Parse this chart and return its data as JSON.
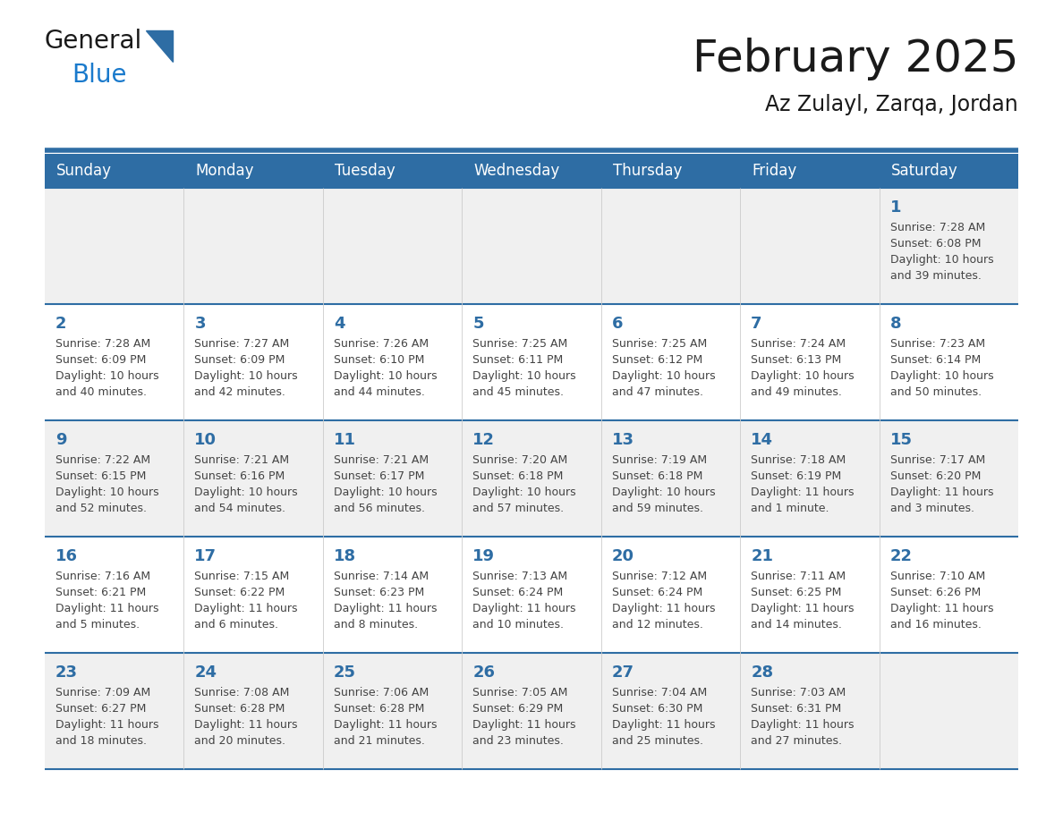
{
  "title": "February 2025",
  "subtitle": "Az Zulayl, Zarqa, Jordan",
  "header_bg_color": "#2E6DA4",
  "header_text_color": "#FFFFFF",
  "row_colors": [
    "#F0F0F0",
    "#FFFFFF",
    "#F0F0F0",
    "#FFFFFF",
    "#F0F0F0"
  ],
  "day_number_color": "#2E6DA4",
  "text_color": "#444444",
  "line_color": "#2E6DA4",
  "days_of_week": [
    "Sunday",
    "Monday",
    "Tuesday",
    "Wednesday",
    "Thursday",
    "Friday",
    "Saturday"
  ],
  "weeks": [
    [
      {
        "day": null,
        "info": null
      },
      {
        "day": null,
        "info": null
      },
      {
        "day": null,
        "info": null
      },
      {
        "day": null,
        "info": null
      },
      {
        "day": null,
        "info": null
      },
      {
        "day": null,
        "info": null
      },
      {
        "day": 1,
        "info": "Sunrise: 7:28 AM\nSunset: 6:08 PM\nDaylight: 10 hours\nand 39 minutes."
      }
    ],
    [
      {
        "day": 2,
        "info": "Sunrise: 7:28 AM\nSunset: 6:09 PM\nDaylight: 10 hours\nand 40 minutes."
      },
      {
        "day": 3,
        "info": "Sunrise: 7:27 AM\nSunset: 6:09 PM\nDaylight: 10 hours\nand 42 minutes."
      },
      {
        "day": 4,
        "info": "Sunrise: 7:26 AM\nSunset: 6:10 PM\nDaylight: 10 hours\nand 44 minutes."
      },
      {
        "day": 5,
        "info": "Sunrise: 7:25 AM\nSunset: 6:11 PM\nDaylight: 10 hours\nand 45 minutes."
      },
      {
        "day": 6,
        "info": "Sunrise: 7:25 AM\nSunset: 6:12 PM\nDaylight: 10 hours\nand 47 minutes."
      },
      {
        "day": 7,
        "info": "Sunrise: 7:24 AM\nSunset: 6:13 PM\nDaylight: 10 hours\nand 49 minutes."
      },
      {
        "day": 8,
        "info": "Sunrise: 7:23 AM\nSunset: 6:14 PM\nDaylight: 10 hours\nand 50 minutes."
      }
    ],
    [
      {
        "day": 9,
        "info": "Sunrise: 7:22 AM\nSunset: 6:15 PM\nDaylight: 10 hours\nand 52 minutes."
      },
      {
        "day": 10,
        "info": "Sunrise: 7:21 AM\nSunset: 6:16 PM\nDaylight: 10 hours\nand 54 minutes."
      },
      {
        "day": 11,
        "info": "Sunrise: 7:21 AM\nSunset: 6:17 PM\nDaylight: 10 hours\nand 56 minutes."
      },
      {
        "day": 12,
        "info": "Sunrise: 7:20 AM\nSunset: 6:18 PM\nDaylight: 10 hours\nand 57 minutes."
      },
      {
        "day": 13,
        "info": "Sunrise: 7:19 AM\nSunset: 6:18 PM\nDaylight: 10 hours\nand 59 minutes."
      },
      {
        "day": 14,
        "info": "Sunrise: 7:18 AM\nSunset: 6:19 PM\nDaylight: 11 hours\nand 1 minute."
      },
      {
        "day": 15,
        "info": "Sunrise: 7:17 AM\nSunset: 6:20 PM\nDaylight: 11 hours\nand 3 minutes."
      }
    ],
    [
      {
        "day": 16,
        "info": "Sunrise: 7:16 AM\nSunset: 6:21 PM\nDaylight: 11 hours\nand 5 minutes."
      },
      {
        "day": 17,
        "info": "Sunrise: 7:15 AM\nSunset: 6:22 PM\nDaylight: 11 hours\nand 6 minutes."
      },
      {
        "day": 18,
        "info": "Sunrise: 7:14 AM\nSunset: 6:23 PM\nDaylight: 11 hours\nand 8 minutes."
      },
      {
        "day": 19,
        "info": "Sunrise: 7:13 AM\nSunset: 6:24 PM\nDaylight: 11 hours\nand 10 minutes."
      },
      {
        "day": 20,
        "info": "Sunrise: 7:12 AM\nSunset: 6:24 PM\nDaylight: 11 hours\nand 12 minutes."
      },
      {
        "day": 21,
        "info": "Sunrise: 7:11 AM\nSunset: 6:25 PM\nDaylight: 11 hours\nand 14 minutes."
      },
      {
        "day": 22,
        "info": "Sunrise: 7:10 AM\nSunset: 6:26 PM\nDaylight: 11 hours\nand 16 minutes."
      }
    ],
    [
      {
        "day": 23,
        "info": "Sunrise: 7:09 AM\nSunset: 6:27 PM\nDaylight: 11 hours\nand 18 minutes."
      },
      {
        "day": 24,
        "info": "Sunrise: 7:08 AM\nSunset: 6:28 PM\nDaylight: 11 hours\nand 20 minutes."
      },
      {
        "day": 25,
        "info": "Sunrise: 7:06 AM\nSunset: 6:28 PM\nDaylight: 11 hours\nand 21 minutes."
      },
      {
        "day": 26,
        "info": "Sunrise: 7:05 AM\nSunset: 6:29 PM\nDaylight: 11 hours\nand 23 minutes."
      },
      {
        "day": 27,
        "info": "Sunrise: 7:04 AM\nSunset: 6:30 PM\nDaylight: 11 hours\nand 25 minutes."
      },
      {
        "day": 28,
        "info": "Sunrise: 7:03 AM\nSunset: 6:31 PM\nDaylight: 11 hours\nand 27 minutes."
      },
      {
        "day": null,
        "info": null
      }
    ]
  ],
  "logo_text_general": "General",
  "logo_text_blue": "Blue",
  "logo_color_general": "#1a1a1a",
  "logo_color_blue": "#1a7acc",
  "logo_triangle_color": "#2E6DA4",
  "title_fontsize": 36,
  "subtitle_fontsize": 17,
  "header_fontsize": 12,
  "day_num_fontsize": 13,
  "cell_text_fontsize": 9
}
